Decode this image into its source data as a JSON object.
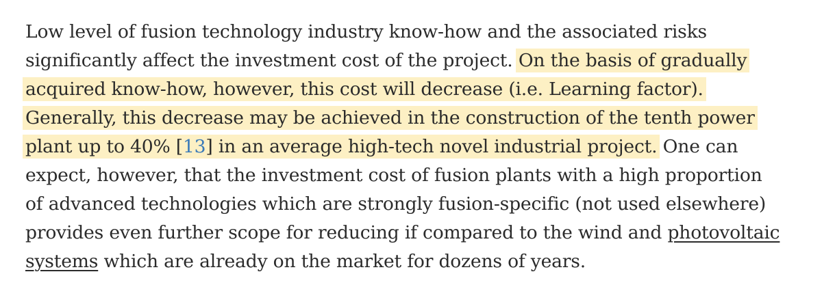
{
  "paragraph": {
    "lines": [
      {
        "pre": "Low level of fusion technology industry know-how and the associated risks"
      },
      {
        "pre": "significantly affect the investment cost of the project. ",
        "highlight": "On the basis of gradually"
      },
      {
        "highlight": "acquired know-how, however, this cost will decrease (i.e. Learning factor)."
      },
      {
        "highlight": "Generally, this decrease may be achieved in the construction of the tenth power"
      },
      {
        "highlight_pre": "plant up to 40% [",
        "ref": "13",
        "highlight_post": "] in an average high-tech novel industrial project.",
        "post": " One can"
      },
      {
        "pre": "expect, however, that the investment cost of fusion plants with a high proportion"
      },
      {
        "pre": "of advanced technologies which are strongly fusion-specific (not used elsewhere)"
      },
      {
        "pre": "provides even further scope for reducing if compared to the wind and ",
        "link": "photovoltaic"
      },
      {
        "link": "systems",
        "post": " which are already on the market for dozens of years."
      }
    ]
  }
}
